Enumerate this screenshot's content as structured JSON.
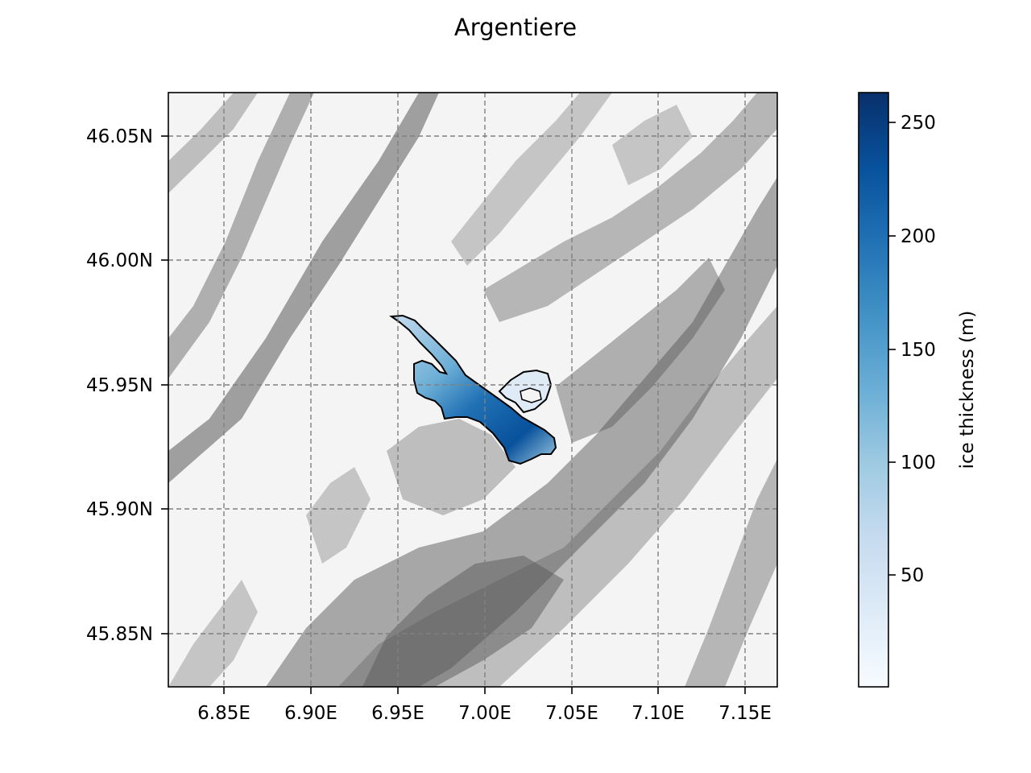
{
  "title": "Argentiere",
  "map": {
    "lon_range": [
      6.819,
      7.167
    ],
    "lat_range": [
      45.829,
      46.067
    ],
    "x_ticks": [
      {
        "value": 6.85,
        "label": "6.85E"
      },
      {
        "value": 6.9,
        "label": "6.90E"
      },
      {
        "value": 6.95,
        "label": "6.95E"
      },
      {
        "value": 7.0,
        "label": "7.00E"
      },
      {
        "value": 7.05,
        "label": "7.05E"
      },
      {
        "value": 7.1,
        "label": "7.10E"
      },
      {
        "value": 7.15,
        "label": "7.15E"
      }
    ],
    "y_ticks": [
      {
        "value": 46.05,
        "label": "46.05N"
      },
      {
        "value": 46.0,
        "label": "46.00N"
      },
      {
        "value": 45.95,
        "label": "45.95N"
      },
      {
        "value": 45.9,
        "label": "45.90N"
      },
      {
        "value": 45.85,
        "label": "45.85N"
      }
    ],
    "grid": true,
    "background": "hillshade relief (grayscale)",
    "glacier_outline_color": "#000000"
  },
  "colorbar": {
    "label": "ice thickness (m)",
    "colormap": "Blues",
    "range": [
      0,
      263
    ],
    "ticks": [
      {
        "value": 50,
        "label": "50"
      },
      {
        "value": 100,
        "label": "100"
      },
      {
        "value": 150,
        "label": "150"
      },
      {
        "value": 200,
        "label": "200"
      },
      {
        "value": 250,
        "label": "250"
      }
    ],
    "colors": [
      "#f7fbff",
      "#deebf7",
      "#c6dbef",
      "#9ecae1",
      "#6baed6",
      "#4292c6",
      "#2171b5",
      "#08519c",
      "#08306b"
    ]
  }
}
